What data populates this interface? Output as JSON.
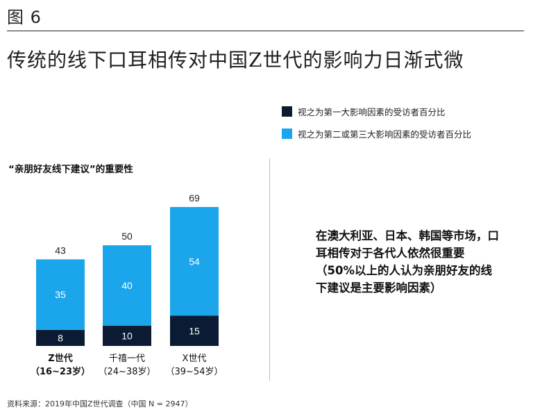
{
  "figure_label": "图 6",
  "headline": "传统的线下口耳相传对中国Z世代的影响力日渐式微",
  "legend": [
    {
      "label": "视之为第一大影响因素的受访者百分比",
      "color": "#0b1b33"
    },
    {
      "label": "视之为第二或第三大影响因素的受访者百分比",
      "color": "#1ba6ec"
    }
  ],
  "panel_title": "“亲朋好友线下建议”的重要性",
  "chart_data": {
    "type": "bar",
    "stacked": true,
    "title": "“亲朋好友线下建议”的重要性",
    "categories": [
      {
        "name": "Z世代",
        "range": "（16~23岁）",
        "bold": true
      },
      {
        "name": "千禧一代",
        "range": "（24~38岁）",
        "bold": false
      },
      {
        "name": "X世代",
        "range": "（39~54岁）",
        "bold": false
      }
    ],
    "series": [
      {
        "name": "视之为第一大影响因素的受访者百分比",
        "values": [
          8,
          10,
          15
        ],
        "color": "#0b1b33",
        "label_color": "#ffffff"
      },
      {
        "name": "视之为第二或第三大影响因素的受访者百分比",
        "values": [
          35,
          40,
          54
        ],
        "color": "#1ba6ec",
        "label_color": "#ffffff"
      }
    ],
    "totals": [
      43,
      50,
      69
    ],
    "ylim": [
      0,
      69
    ]
  },
  "callout": "在澳大利亚、日本、韩国等市场，口耳相传对于各代人依然很重要（50%以上的人认为亲朋好友的线下建议是主要影响因素）",
  "source": "资料来源：2019年中国Z世代调查（中国 N = 2947）"
}
